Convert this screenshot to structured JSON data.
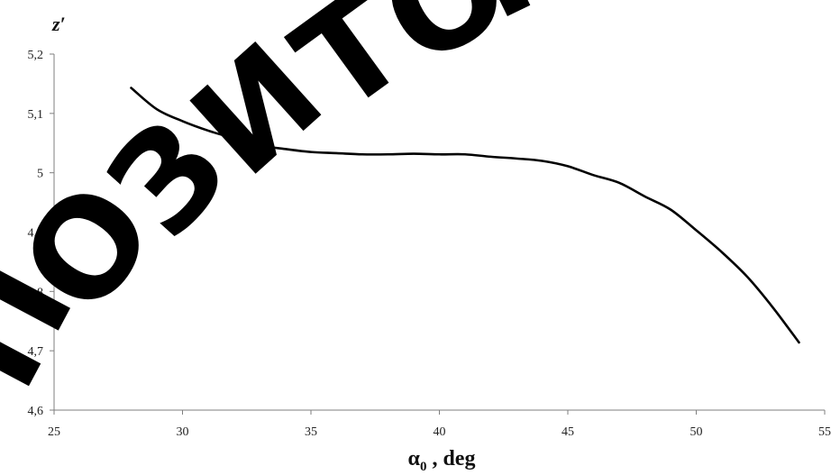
{
  "chart_data": {
    "type": "line",
    "title": "",
    "ylabel": "z′",
    "xlabel": {
      "symbol": "α",
      "subscript": "0",
      "suffix": " , deg"
    },
    "xlim": [
      25,
      55
    ],
    "ylim": [
      4.6,
      5.2
    ],
    "xticks": [
      25,
      30,
      35,
      40,
      45,
      50,
      55
    ],
    "xtick_labels": [
      "25",
      "30",
      "35",
      "40",
      "45",
      "50",
      "55"
    ],
    "yticks": [
      4.6,
      4.7,
      4.8,
      4.9,
      5.0,
      5.1,
      5.2
    ],
    "ytick_labels": [
      "4,6",
      "4,7",
      "4,8",
      "4,9",
      "5",
      "5,1",
      "5,2"
    ],
    "grid": false,
    "legend": "none",
    "series": [
      {
        "color": "#000000",
        "x": [
          28,
          29,
          30,
          31,
          32,
          33,
          34,
          35,
          36,
          37,
          38,
          39,
          40,
          41,
          42,
          43,
          44,
          45,
          46,
          47,
          48,
          49,
          50,
          51,
          52,
          53,
          54
        ],
        "y": [
          5.143,
          5.107,
          5.087,
          5.071,
          5.058,
          5.046,
          5.04,
          5.035,
          5.033,
          5.031,
          5.031,
          5.032,
          5.031,
          5.031,
          5.027,
          5.024,
          5.02,
          5.011,
          4.996,
          4.983,
          4.96,
          4.938,
          4.903,
          4.866,
          4.824,
          4.772,
          4.714
        ]
      }
    ]
  },
  "watermark": {
    "text": "ПОЗИТОР",
    "color": "#000000"
  }
}
